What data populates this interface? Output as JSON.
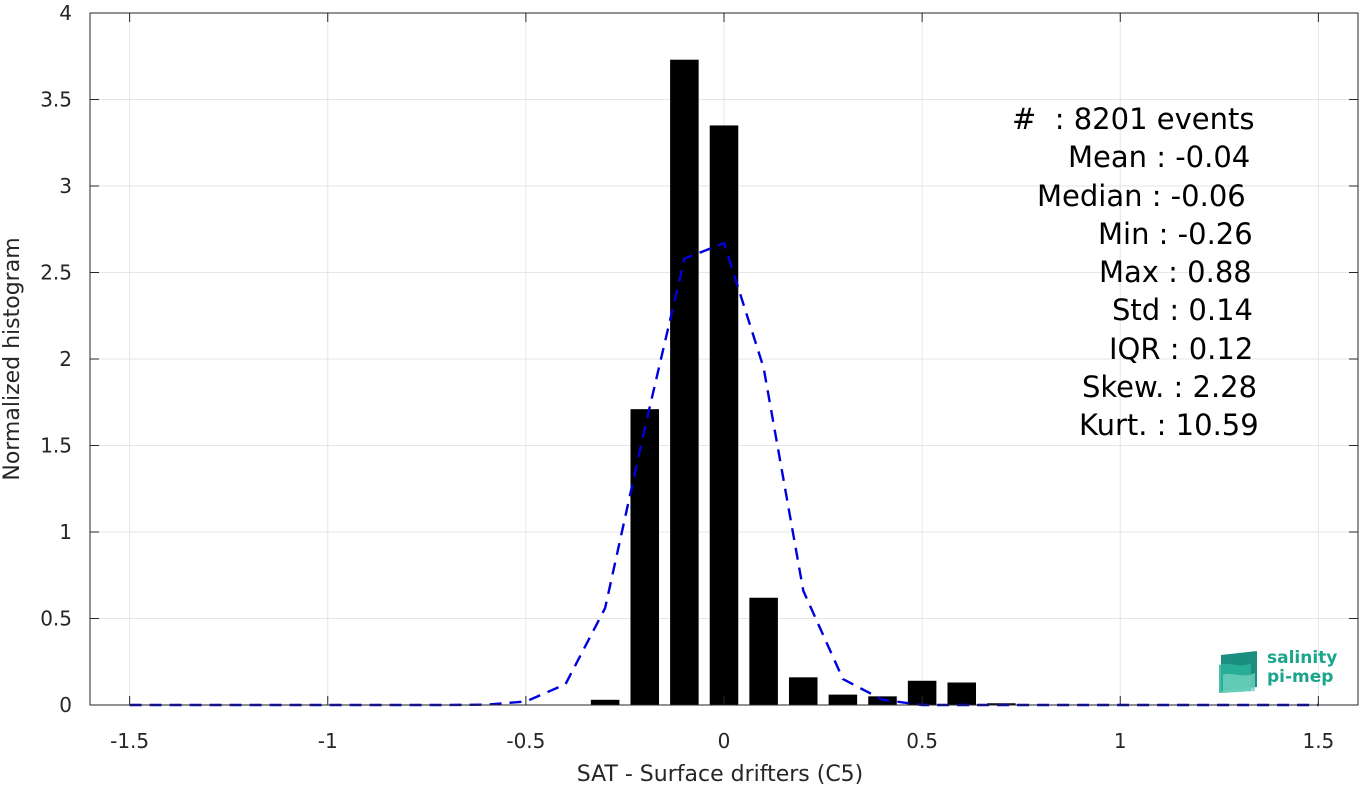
{
  "chart_data": {
    "type": "bar",
    "xlabel": "SAT - Surface drifters (C5)",
    "ylabel": "Normalized histogram",
    "xlim": [
      -1.6,
      1.6
    ],
    "ylim": [
      0,
      4
    ],
    "x_ticks": [
      "-1.5",
      "-1",
      "-0.5",
      "0",
      "0.5",
      "1",
      "1.5"
    ],
    "y_ticks": [
      "0",
      "0.5",
      "1",
      "1.5",
      "2",
      "2.5",
      "3",
      "3.5",
      "4"
    ],
    "grid": true,
    "bars": {
      "x": [
        -0.3,
        -0.2,
        -0.1,
        0.0,
        0.1,
        0.2,
        0.3,
        0.4,
        0.5,
        0.6,
        0.7
      ],
      "values": [
        0.03,
        1.71,
        3.73,
        3.35,
        0.62,
        0.16,
        0.06,
        0.05,
        0.14,
        0.13,
        0.01
      ],
      "color": "#000000"
    },
    "fit_curve": {
      "style": "dashed",
      "color": "#0000dd",
      "x": [
        -1.5,
        -1.4,
        -1.3,
        -1.2,
        -1.1,
        -1.0,
        -0.9,
        -0.8,
        -0.7,
        -0.6,
        -0.5,
        -0.4,
        -0.3,
        -0.2,
        -0.1,
        0.0,
        0.1,
        0.2,
        0.3,
        0.4,
        0.5,
        0.6,
        0.7,
        0.8,
        0.9,
        1.0,
        1.1,
        1.2,
        1.3,
        1.4,
        1.5
      ],
      "y": [
        0,
        0,
        0,
        0,
        0,
        0,
        0,
        0,
        0,
        0.002,
        0.02,
        0.12,
        0.56,
        1.6,
        2.58,
        2.67,
        1.95,
        0.66,
        0.15,
        0.03,
        0,
        0,
        0,
        0,
        0,
        0,
        0,
        0,
        0,
        0,
        0
      ]
    }
  },
  "stats": [
    "#  : 8201 events",
    "Mean : -0.04",
    "Median : -0.06",
    "Min : -0.26",
    "Max : 0.88",
    "Std : 0.14",
    "IQR : 0.12",
    "Skew. : 2.28",
    "Kurt. : 10.59"
  ],
  "logo": {
    "line1": "salinity",
    "line2": "pi-mep",
    "color": "#1aa58c"
  }
}
